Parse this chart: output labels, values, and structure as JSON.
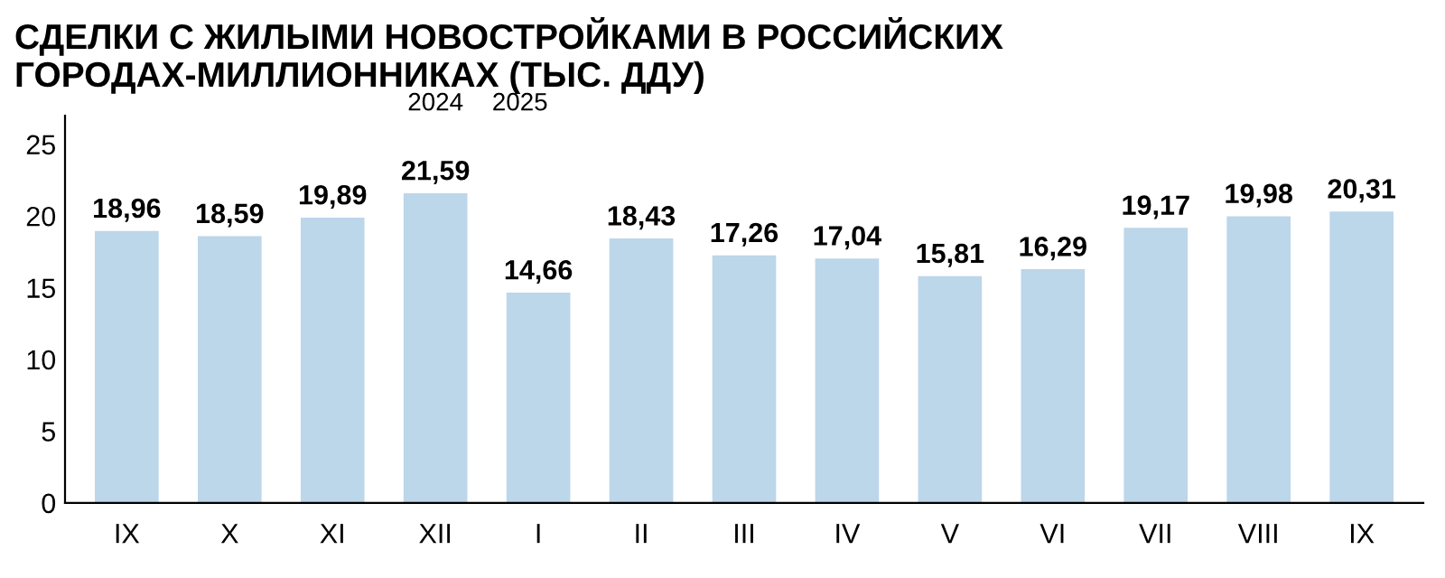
{
  "chart_data": {
    "type": "bar",
    "title": "СДЕЛКИ С ЖИЛЫМИ НОВОСТРОЙКАМИ В РОССИЙСКИХ\nГОРОДАХ-МИЛЛИОННИКАХ (ТЫС. ДДУ)",
    "categories": [
      "IX",
      "X",
      "XI",
      "XII",
      "I",
      "II",
      "III",
      "IV",
      "V",
      "VI",
      "VII",
      "VIII",
      "IX"
    ],
    "values": [
      18.96,
      18.59,
      19.89,
      21.59,
      14.66,
      18.43,
      17.26,
      17.04,
      15.81,
      16.29,
      19.17,
      19.98,
      20.31
    ],
    "value_labels": [
      "18,96",
      "18,59",
      "19,89",
      "21,59",
      "14,66",
      "18,43",
      "17,26",
      "17,04",
      "15,81",
      "16,29",
      "19,17",
      "19,98",
      "20,31"
    ],
    "color": "#bcd6ea",
    "ylim": [
      0,
      27
    ],
    "yticks": [
      0,
      5,
      10,
      15,
      20,
      25
    ],
    "grid": false,
    "annotations": [
      "2024",
      "2025"
    ]
  }
}
